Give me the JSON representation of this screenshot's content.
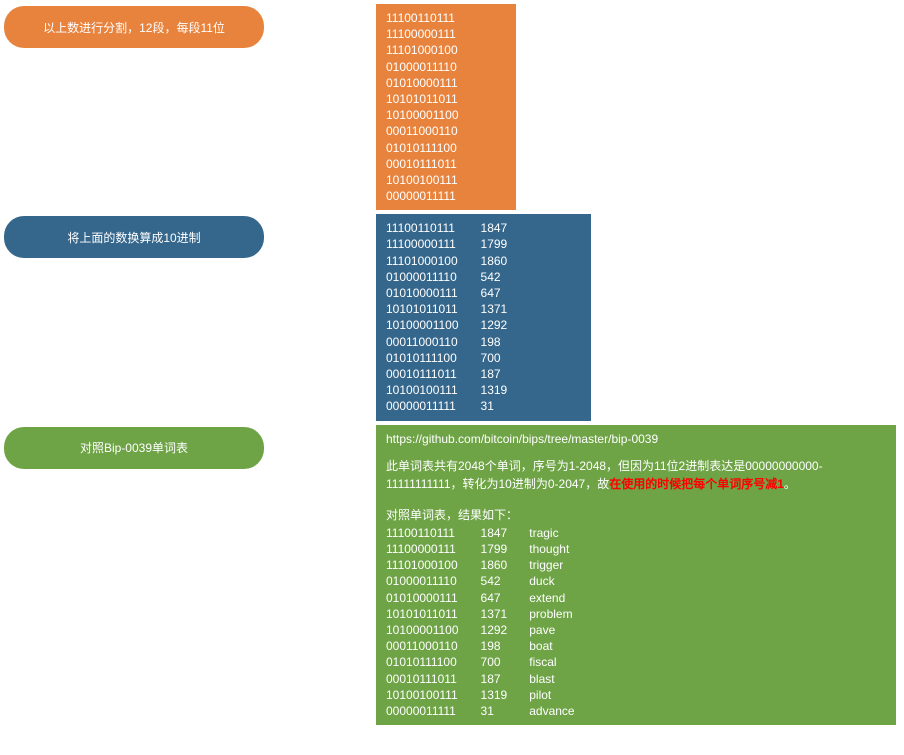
{
  "colors": {
    "orange": "#e8833e",
    "blue": "#35668c",
    "green": "#6ea346",
    "text": "#ffffff",
    "highlight": "#ff0000"
  },
  "step1": {
    "label": "以上数进行分割，12段，每段11位",
    "pill_bg": "#e8833e",
    "box_bg": "#e8833e",
    "lines": [
      "11100110111",
      "11100000111",
      "11101000100",
      "01000011110",
      "01010000111",
      "10101011011",
      "10100001100",
      "00011000110",
      "01010111100",
      "00010111011",
      "10100100111",
      "00000011111"
    ]
  },
  "step2": {
    "label": "将上面的数换算成10进制",
    "pill_bg": "#35668c",
    "box_bg": "#35668c",
    "rows": [
      {
        "bin": "11100110111",
        "dec": "1847"
      },
      {
        "bin": "11100000111",
        "dec": "1799"
      },
      {
        "bin": "11101000100",
        "dec": "1860"
      },
      {
        "bin": "01000011110",
        "dec": "542"
      },
      {
        "bin": "01010000111",
        "dec": "647"
      },
      {
        "bin": "10101011011",
        "dec": "1371"
      },
      {
        "bin": "10100001100",
        "dec": "1292"
      },
      {
        "bin": "00011000110",
        "dec": "198"
      },
      {
        "bin": "01010111100",
        "dec": "700"
      },
      {
        "bin": "00010111011",
        "dec": "187"
      },
      {
        "bin": "10100100111",
        "dec": "1319"
      },
      {
        "bin": "00000011111",
        "dec": "31"
      }
    ]
  },
  "step3": {
    "label": "对照Bip-0039单词表",
    "pill_bg": "#6ea346",
    "box_bg": "#6ea346",
    "url": "https://github.com/bitcoin/bips/tree/master/bip-0039",
    "para_prefix": "此单词表共有2048个单词，序号为1-2048，但因为11位2进制表达是00000000000-11111111111，转化为10进制为0-2047，故",
    "para_highlight": "在使用的时候把每个单词序号减1",
    "para_suffix": "。",
    "subhead": "对照单词表，结果如下：",
    "rows": [
      {
        "bin": "11100110111",
        "dec": "1847",
        "word": "tragic"
      },
      {
        "bin": "11100000111",
        "dec": "1799",
        "word": "thought"
      },
      {
        "bin": "11101000100",
        "dec": "1860",
        "word": "trigger"
      },
      {
        "bin": "01000011110",
        "dec": "542",
        "word": "duck"
      },
      {
        "bin": "01010000111",
        "dec": "647",
        "word": "extend"
      },
      {
        "bin": "10101011011",
        "dec": "1371",
        "word": "problem"
      },
      {
        "bin": "10100001100",
        "dec": "1292",
        "word": "pave"
      },
      {
        "bin": "00011000110",
        "dec": "198",
        "word": "boat"
      },
      {
        "bin": "01010111100",
        "dec": "700",
        "word": "fiscal"
      },
      {
        "bin": "00010111011",
        "dec": "187",
        "word": "blast"
      },
      {
        "bin": "10100100111",
        "dec": "1319",
        "word": "pilot"
      },
      {
        "bin": "00000011111",
        "dec": "31",
        "word": "advance"
      }
    ]
  }
}
